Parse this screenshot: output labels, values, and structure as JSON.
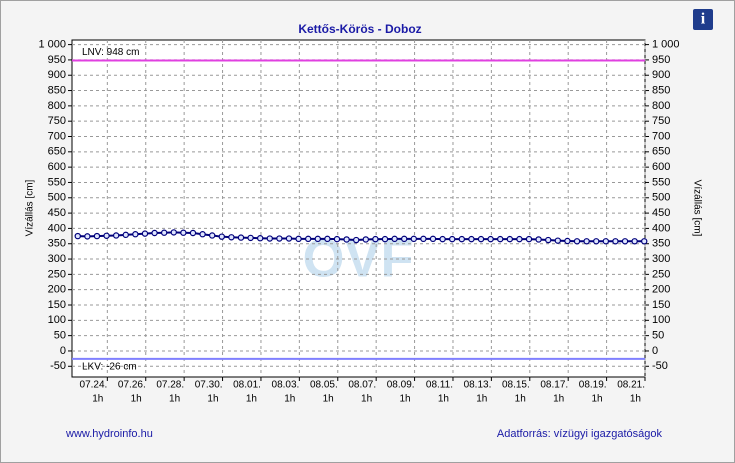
{
  "chart_data": {
    "type": "line",
    "title": "Kettős-Körös - Doboz",
    "y_label": "Vízállás [cm]",
    "watermark": "OVF",
    "footer_left": "www.hydroinfo.hu",
    "footer_right": "Adatforrás: vízügyi igazgatóságok",
    "info_icon": "i",
    "xlim": [
      203.2,
      233.04
    ],
    "xticks": [
      {
        "value": 205.04,
        "label": "07.24.",
        "time": "1h"
      },
      {
        "value": 207.04,
        "label": "07.26.",
        "time": "1h"
      },
      {
        "value": 209.04,
        "label": "07.28.",
        "time": "1h"
      },
      {
        "value": 211.04,
        "label": "07.30.",
        "time": "1h"
      },
      {
        "value": 213.04,
        "label": "08.01.",
        "time": "1h"
      },
      {
        "value": 215.04,
        "label": "08.03.",
        "time": "1h"
      },
      {
        "value": 217.04,
        "label": "08.05.",
        "time": "1h"
      },
      {
        "value": 219.04,
        "label": "08.07.",
        "time": "1h"
      },
      {
        "value": 221.04,
        "label": "08.09.",
        "time": "1h"
      },
      {
        "value": 223.04,
        "label": "08.11.",
        "time": "1h"
      },
      {
        "value": 225.04,
        "label": "08.13.",
        "time": "1h"
      },
      {
        "value": 227.04,
        "label": "08.15.",
        "time": "1h"
      },
      {
        "value": 229.04,
        "label": "08.17.",
        "time": "1h"
      },
      {
        "value": 231.04,
        "label": "08.19.",
        "time": "1h"
      },
      {
        "value": 233.04,
        "label": "08.21.",
        "time": "1h"
      }
    ],
    "ylim": [
      -85,
      1015
    ],
    "yticks": [
      -50,
      0,
      50,
      100,
      150,
      200,
      250,
      300,
      350,
      400,
      450,
      500,
      550,
      600,
      650,
      700,
      750,
      800,
      850,
      900,
      950,
      {
        "value": 1000,
        "label": "1 000"
      }
    ],
    "grid": true,
    "reference_lines": [
      {
        "label": "LNV: 948 cm",
        "value": 948,
        "color": "#e040e0"
      },
      {
        "label": "LKV: -26 cm",
        "value": -26,
        "color": "#8080ff"
      }
    ],
    "x": [
      203.5,
      204,
      204.5,
      205,
      205.5,
      206,
      206.5,
      207,
      207.5,
      208,
      208.5,
      209,
      209.5,
      210,
      210.5,
      211,
      211.5,
      212,
      212.5,
      213,
      213.5,
      214,
      214.5,
      215,
      215.5,
      216,
      216.5,
      217,
      217.5,
      218,
      218.5,
      219,
      219.5,
      220,
      220.5,
      221,
      221.5,
      222,
      222.5,
      223,
      223.5,
      224,
      224.5,
      225,
      225.5,
      226,
      226.5,
      227,
      227.5,
      228,
      228.5,
      229,
      229.5,
      230,
      230.5,
      231,
      231.5,
      232,
      232.5,
      233
    ],
    "series": [
      {
        "color": "#00007a",
        "values": [
          375,
          374,
          375,
          376,
          377,
          379,
          381,
          383,
          385,
          386,
          387,
          386,
          385,
          381,
          377,
          373,
          371,
          370,
          369,
          368,
          367,
          367,
          367,
          366,
          366,
          366,
          366,
          365,
          364,
          362,
          364,
          365,
          365,
          366,
          366,
          366,
          366,
          366,
          365,
          365,
          365,
          365,
          365,
          365,
          365,
          365,
          365,
          365,
          364,
          362,
          360,
          359,
          358,
          358,
          358,
          358,
          358,
          358,
          358,
          358
        ]
      }
    ]
  }
}
